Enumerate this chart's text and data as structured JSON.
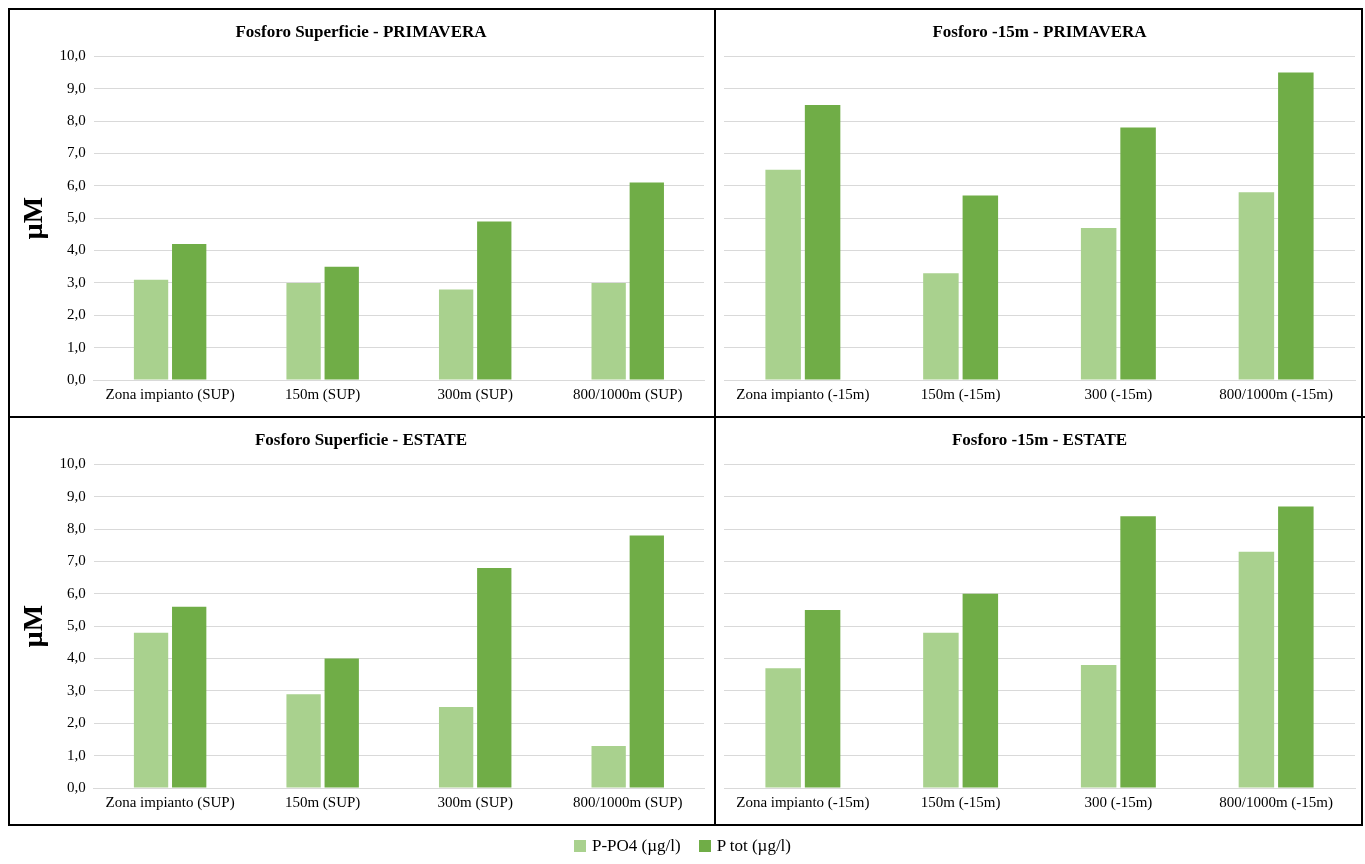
{
  "chart_data": [
    {
      "type": "bar",
      "title": "Fosforo Superficie - PRIMAVERA",
      "ylabel": "µM",
      "categories": [
        "Zona impianto (SUP)",
        "150m (SUP)",
        "300m (SUP)",
        "800/1000m (SUP)"
      ],
      "series": [
        {
          "color": "#a9d18e",
          "values": [
            3.1,
            3.0,
            2.8,
            3.0
          ]
        },
        {
          "color": "#70ad47",
          "values": [
            4.2,
            3.5,
            4.9,
            6.1
          ]
        }
      ],
      "ylim": [
        0,
        10
      ],
      "yticks": [
        {
          "value": 0,
          "label": "0,0"
        },
        {
          "value": 1,
          "label": "1,0"
        },
        {
          "value": 2,
          "label": "2,0"
        },
        {
          "value": 3,
          "label": "3,0"
        },
        {
          "value": 4,
          "label": "4,0"
        },
        {
          "value": 5,
          "label": "5,0"
        },
        {
          "value": 6,
          "label": "6,0"
        },
        {
          "value": 7,
          "label": "7,0"
        },
        {
          "value": 8,
          "label": "8,0"
        },
        {
          "value": 9,
          "label": "9,0"
        },
        {
          "value": 10,
          "label": "10,0"
        }
      ],
      "grid": "y"
    },
    {
      "type": "bar",
      "title": "Fosforo -15m - PRIMAVERA",
      "categories": [
        "Zona impianto (-15m)",
        "150m (-15m)",
        "300 (-15m)",
        "800/1000m (-15m)"
      ],
      "series": [
        {
          "color": "#a9d18e",
          "values": [
            6.5,
            3.3,
            4.7,
            5.8
          ]
        },
        {
          "color": "#70ad47",
          "values": [
            8.5,
            5.7,
            7.8,
            9.5
          ]
        }
      ],
      "ylim": [
        0,
        10
      ],
      "yticks": [
        0,
        1,
        2,
        3,
        4,
        5,
        6,
        7,
        8,
        9,
        10
      ],
      "tick_labels": "x",
      "grid": "y"
    },
    {
      "type": "bar",
      "title": "Fosforo Superficie - ESTATE",
      "ylabel": "µM",
      "categories": [
        "Zona impianto (SUP)",
        "150m (SUP)",
        "300m (SUP)",
        "800/1000m (SUP)"
      ],
      "series": [
        {
          "color": "#a9d18e",
          "values": [
            4.8,
            2.9,
            2.5,
            1.3
          ]
        },
        {
          "color": "#70ad47",
          "values": [
            5.6,
            4.0,
            6.8,
            7.8
          ]
        }
      ],
      "ylim": [
        0,
        10
      ],
      "yticks": [
        {
          "value": 0,
          "label": "0,0"
        },
        {
          "value": 1,
          "label": "1,0"
        },
        {
          "value": 2,
          "label": "2,0"
        },
        {
          "value": 3,
          "label": "3,0"
        },
        {
          "value": 4,
          "label": "4,0"
        },
        {
          "value": 5,
          "label": "5,0"
        },
        {
          "value": 6,
          "label": "6,0"
        },
        {
          "value": 7,
          "label": "7,0"
        },
        {
          "value": 8,
          "label": "8,0"
        },
        {
          "value": 9,
          "label": "9,0"
        },
        {
          "value": 10,
          "label": "10,0"
        }
      ],
      "grid": "y"
    },
    {
      "type": "bar",
      "title": "Fosforo -15m - ESTATE",
      "categories": [
        "Zona impianto (-15m)",
        "150m (-15m)",
        "300 (-15m)",
        "800/1000m (-15m)"
      ],
      "series": [
        {
          "name": "P-PO4 (µg/l)",
          "color": "#a9d18e",
          "values": [
            3.7,
            4.8,
            3.8,
            7.3
          ]
        },
        {
          "name": "P tot (µg/l)",
          "color": "#70ad47",
          "values": [
            5.5,
            6.0,
            8.4,
            8.7
          ]
        }
      ],
      "ylim": [
        0,
        10
      ],
      "yticks": [
        0,
        1,
        2,
        3,
        4,
        5,
        6,
        7,
        8,
        9,
        10
      ],
      "tick_labels": "x",
      "grid": "y",
      "legend": "bottom"
    }
  ]
}
